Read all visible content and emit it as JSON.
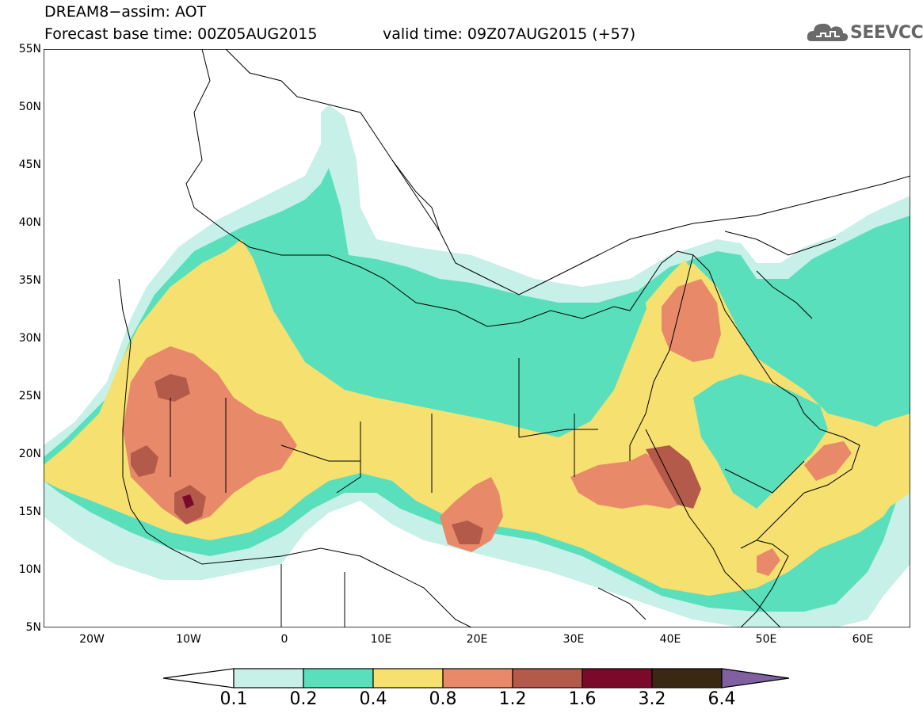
{
  "header": {
    "title_line1": "DREAM8−assim: AOT",
    "title_line2": "Forecast base time: 00Z05AUG2015",
    "title_line2b": "valid time: 09Z07AUG2015 (+57)",
    "logo_text": "SEEVCCC"
  },
  "axes": {
    "lat_labels": [
      "55N",
      "50N",
      "45N",
      "40N",
      "35N",
      "30N",
      "25N",
      "20N",
      "15N",
      "10N",
      "5N"
    ],
    "lon_labels": [
      "20W",
      "10W",
      "0",
      "10E",
      "20E",
      "30E",
      "40E",
      "50E",
      "60E"
    ]
  },
  "colorbar": {
    "levels": [
      "0.1",
      "0.2",
      "0.4",
      "0.8",
      "1.2",
      "1.6",
      "3.2",
      "6.4"
    ],
    "colors": [
      "#c6f0e8",
      "#5adfbc",
      "#f5e070",
      "#e8896a",
      "#b35a4a",
      "#7a0a2a",
      "#3a2814",
      "#8060a0"
    ]
  },
  "chart_data": {
    "type": "heatmap",
    "variable": "AOT",
    "lon_range": [
      -25,
      65
    ],
    "lat_range": [
      5,
      55
    ]
  }
}
